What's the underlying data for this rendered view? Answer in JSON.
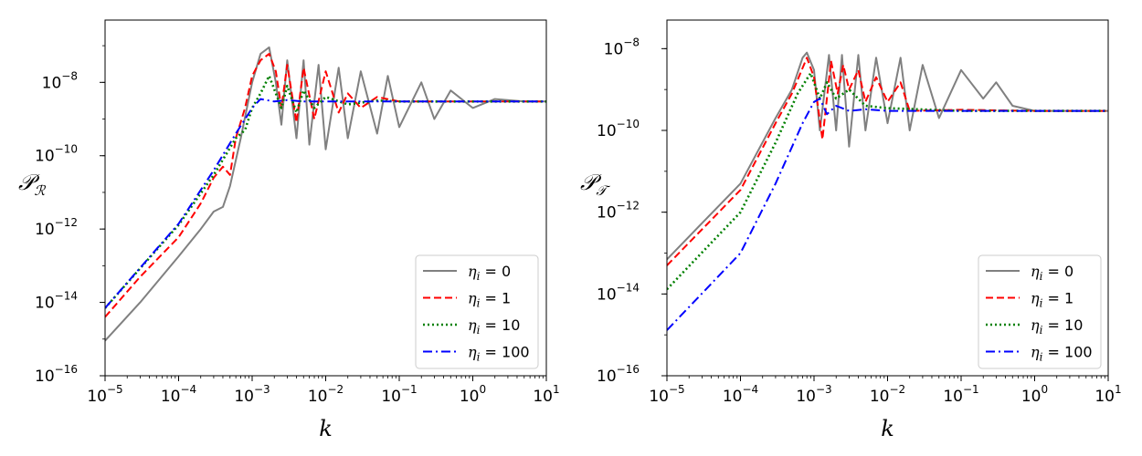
{
  "chart_data": [
    {
      "type": "line",
      "xlabel": "k",
      "ylabel": {
        "main": "𝒫",
        "sub": "ℛ"
      },
      "xscale": "log",
      "yscale": "log",
      "xlim": [
        1e-05,
        10
      ],
      "ylim": [
        1e-16,
        5e-07
      ],
      "xticks": [
        {
          "base": "10",
          "exp": "−5",
          "value": 1e-05
        },
        {
          "base": "10",
          "exp": "−4",
          "value": 0.0001
        },
        {
          "base": "10",
          "exp": "−3",
          "value": 0.001
        },
        {
          "base": "10",
          "exp": "−2",
          "value": 0.01
        },
        {
          "base": "10",
          "exp": "−1",
          "value": 0.1
        },
        {
          "base": "10",
          "exp": "0",
          "value": 1
        },
        {
          "base": "10",
          "exp": "1",
          "value": 10
        }
      ],
      "yticks": [
        {
          "base": "10",
          "exp": "−16",
          "value": 1e-16
        },
        {
          "base": "10",
          "exp": "−14",
          "value": 1e-14
        },
        {
          "base": "10",
          "exp": "−12",
          "value": 1e-12
        },
        {
          "base": "10",
          "exp": "−10",
          "value": 1e-10
        },
        {
          "base": "10",
          "exp": "−8",
          "value": 1e-08
        }
      ],
      "legend_position": "lower right",
      "grid": false,
      "series": [
        {
          "name": "η_i = 0",
          "name_sym": "η",
          "name_sub": "i",
          "name_val": " = 0",
          "color": "#808080",
          "style": "solid",
          "x": [
            1e-05,
            3e-05,
            0.0001,
            0.0002,
            0.0003,
            0.0004,
            0.0005,
            0.0007,
            0.001,
            0.0013,
            0.0017,
            0.0021,
            0.0025,
            0.003,
            0.004,
            0.005,
            0.006,
            0.008,
            0.01,
            0.015,
            0.02,
            0.03,
            0.05,
            0.07,
            0.1,
            0.2,
            0.3,
            0.5,
            1,
            2,
            5,
            10
          ],
          "y": [
            9e-16,
            1e-14,
            1.8e-13,
            1e-12,
            3e-12,
            4e-12,
            1.5e-11,
            3e-10,
            1e-08,
            6e-08,
            9e-08,
            1e-08,
            7e-10,
            4e-08,
            3e-10,
            4e-08,
            2e-10,
            3e-08,
            1.5e-10,
            2.5e-08,
            3e-10,
            2e-08,
            4e-10,
            1.5e-08,
            6e-10,
            1e-08,
            1e-09,
            6e-09,
            2e-09,
            3.5e-09,
            3e-09,
            3e-09
          ]
        },
        {
          "name": "η_i = 1",
          "name_sym": "η",
          "name_sub": "i",
          "name_val": " = 1",
          "color": "#ff0000",
          "style": "dashed",
          "x": [
            1e-05,
            3e-05,
            0.0001,
            0.0002,
            0.0003,
            0.0004,
            0.0005,
            0.0006,
            0.0008,
            0.001,
            0.0013,
            0.0017,
            0.0021,
            0.0025,
            0.003,
            0.004,
            0.005,
            0.007,
            0.01,
            0.015,
            0.02,
            0.03,
            0.05,
            0.1,
            0.2,
            0.5,
            1,
            10
          ],
          "y": [
            4e-15,
            5e-14,
            6e-13,
            5e-12,
            2.5e-11,
            5e-11,
            3e-11,
            3e-10,
            2e-09,
            1.5e-08,
            4e-08,
            6e-08,
            2e-08,
            2e-09,
            3e-08,
            8e-10,
            2.5e-08,
            1e-09,
            2e-08,
            1.5e-09,
            5e-09,
            2e-09,
            4e-09,
            3e-09,
            3e-09,
            3e-09,
            3e-09,
            3e-09
          ]
        },
        {
          "name": "η_i = 10",
          "name_sym": "η",
          "name_sub": "i",
          "name_val": " = 10",
          "color": "#008000",
          "style": "dotted",
          "x": [
            1e-05,
            0.0001,
            0.0003,
            0.0006,
            0.0008,
            0.001,
            0.0013,
            0.0017,
            0.0021,
            0.0025,
            0.003,
            0.004,
            0.005,
            0.007,
            0.01,
            0.02,
            0.05,
            0.1,
            1,
            10
          ],
          "y": [
            7e-15,
            1.3e-12,
            3e-11,
            3e-10,
            5e-10,
            2e-09,
            5e-09,
            1.5e-08,
            5e-09,
            2e-09,
            8e-09,
            1.5e-09,
            6e-09,
            2e-09,
            4e-09,
            2.5e-09,
            3.2e-09,
            3e-09,
            3e-09,
            3e-09
          ]
        },
        {
          "name": "η_i = 100",
          "name_sym": "η",
          "name_sub": "i",
          "name_val": " = 100",
          "color": "#0000ff",
          "style": "dashdot",
          "x": [
            1e-05,
            0.0001,
            0.0003,
            0.0006,
            0.001,
            0.0013,
            0.002,
            0.003,
            0.005,
            0.01,
            0.1,
            1,
            10
          ],
          "y": [
            7e-15,
            1.4e-12,
            4e-11,
            4e-10,
            2e-09,
            3.5e-09,
            3e-09,
            3.3e-09,
            3e-09,
            3e-09,
            3e-09,
            3e-09,
            3e-09
          ]
        }
      ]
    },
    {
      "type": "line",
      "xlabel": "k",
      "ylabel": {
        "main": "𝒫",
        "sub": "𝒯"
      },
      "xscale": "log",
      "yscale": "log",
      "xlim": [
        1e-05,
        10
      ],
      "ylim": [
        1e-16,
        5e-08
      ],
      "xticks": [
        {
          "base": "10",
          "exp": "−5",
          "value": 1e-05
        },
        {
          "base": "10",
          "exp": "−4",
          "value": 0.0001
        },
        {
          "base": "10",
          "exp": "−3",
          "value": 0.001
        },
        {
          "base": "10",
          "exp": "−2",
          "value": 0.01
        },
        {
          "base": "10",
          "exp": "−1",
          "value": 0.1
        },
        {
          "base": "10",
          "exp": "0",
          "value": 1
        },
        {
          "base": "10",
          "exp": "1",
          "value": 10
        }
      ],
      "yticks": [
        {
          "base": "10",
          "exp": "−16",
          "value": 1e-16
        },
        {
          "base": "10",
          "exp": "−14",
          "value": 1e-14
        },
        {
          "base": "10",
          "exp": "−12",
          "value": 1e-12
        },
        {
          "base": "10",
          "exp": "−10",
          "value": 1e-10
        },
        {
          "base": "10",
          "exp": "−8",
          "value": 1e-08
        }
      ],
      "legend_position": "lower right",
      "grid": false,
      "series": [
        {
          "name": "η_i = 0",
          "name_sym": "η",
          "name_sub": "i",
          "name_val": " = 0",
          "color": "#808080",
          "style": "solid",
          "x": [
            1e-05,
            0.0001,
            0.0003,
            0.0005,
            0.0007,
            0.0008,
            0.001,
            0.0012,
            0.0016,
            0.002,
            0.0024,
            0.003,
            0.004,
            0.005,
            0.007,
            0.01,
            0.015,
            0.02,
            0.03,
            0.05,
            0.1,
            0.2,
            0.3,
            0.5,
            1,
            10
          ],
          "y": [
            7e-14,
            5e-12,
            2e-10,
            1e-09,
            6e-09,
            8e-09,
            3e-09,
            1e-10,
            7e-09,
            1e-10,
            7e-09,
            4e-11,
            7e-09,
            1e-10,
            6e-09,
            1.5e-10,
            6e-09,
            1e-10,
            4e-09,
            2e-10,
            3e-09,
            6e-10,
            1.5e-09,
            4e-10,
            3e-10,
            3e-10
          ]
        },
        {
          "name": "η_i = 1",
          "name_sym": "η",
          "name_sub": "i",
          "name_val": " = 1",
          "color": "#ff0000",
          "style": "dashed",
          "x": [
            1e-05,
            0.0001,
            0.0003,
            0.0005,
            0.0008,
            0.001,
            0.0013,
            0.0017,
            0.0021,
            0.0025,
            0.003,
            0.004,
            0.005,
            0.007,
            0.01,
            0.015,
            0.02,
            0.1,
            1,
            10
          ],
          "y": [
            5e-14,
            3.5e-12,
            1.5e-10,
            8e-10,
            6e-09,
            2e-09,
            6e-11,
            5e-09,
            8e-10,
            4e-09,
            1e-09,
            3e-09,
            5e-10,
            2e-09,
            5e-10,
            1.5e-09,
            3e-10,
            3.2e-10,
            3e-10,
            3e-10
          ]
        },
        {
          "name": "η_i = 10",
          "name_sym": "η",
          "name_sub": "i",
          "name_val": " = 10",
          "color": "#008000",
          "style": "dotted",
          "x": [
            1e-05,
            0.0001,
            0.0003,
            0.0006,
            0.0009,
            0.0012,
            0.0015,
            0.002,
            0.003,
            0.005,
            0.01,
            0.1,
            1,
            10
          ],
          "y": [
            1.3e-14,
            1e-12,
            5e-11,
            8e-10,
            2.5e-09,
            6e-10,
            1.5e-09,
            6e-10,
            1e-09,
            4e-10,
            3.5e-10,
            3e-10,
            3e-10,
            3e-10
          ]
        },
        {
          "name": "η_i = 100",
          "name_sym": "η",
          "name_sub": "i",
          "name_val": " = 100",
          "color": "#0000ff",
          "style": "dashdot",
          "x": [
            1e-05,
            0.0001,
            0.0003,
            0.0007,
            0.001,
            0.0012,
            0.0015,
            0.002,
            0.003,
            0.005,
            0.01,
            0.1,
            1,
            10
          ],
          "y": [
            1.3e-15,
            1e-13,
            5e-12,
            1.5e-10,
            5e-10,
            6e-10,
            2.5e-10,
            4e-10,
            3e-10,
            3.3e-10,
            3e-10,
            3e-10,
            3e-10,
            3e-10
          ]
        }
      ]
    }
  ]
}
